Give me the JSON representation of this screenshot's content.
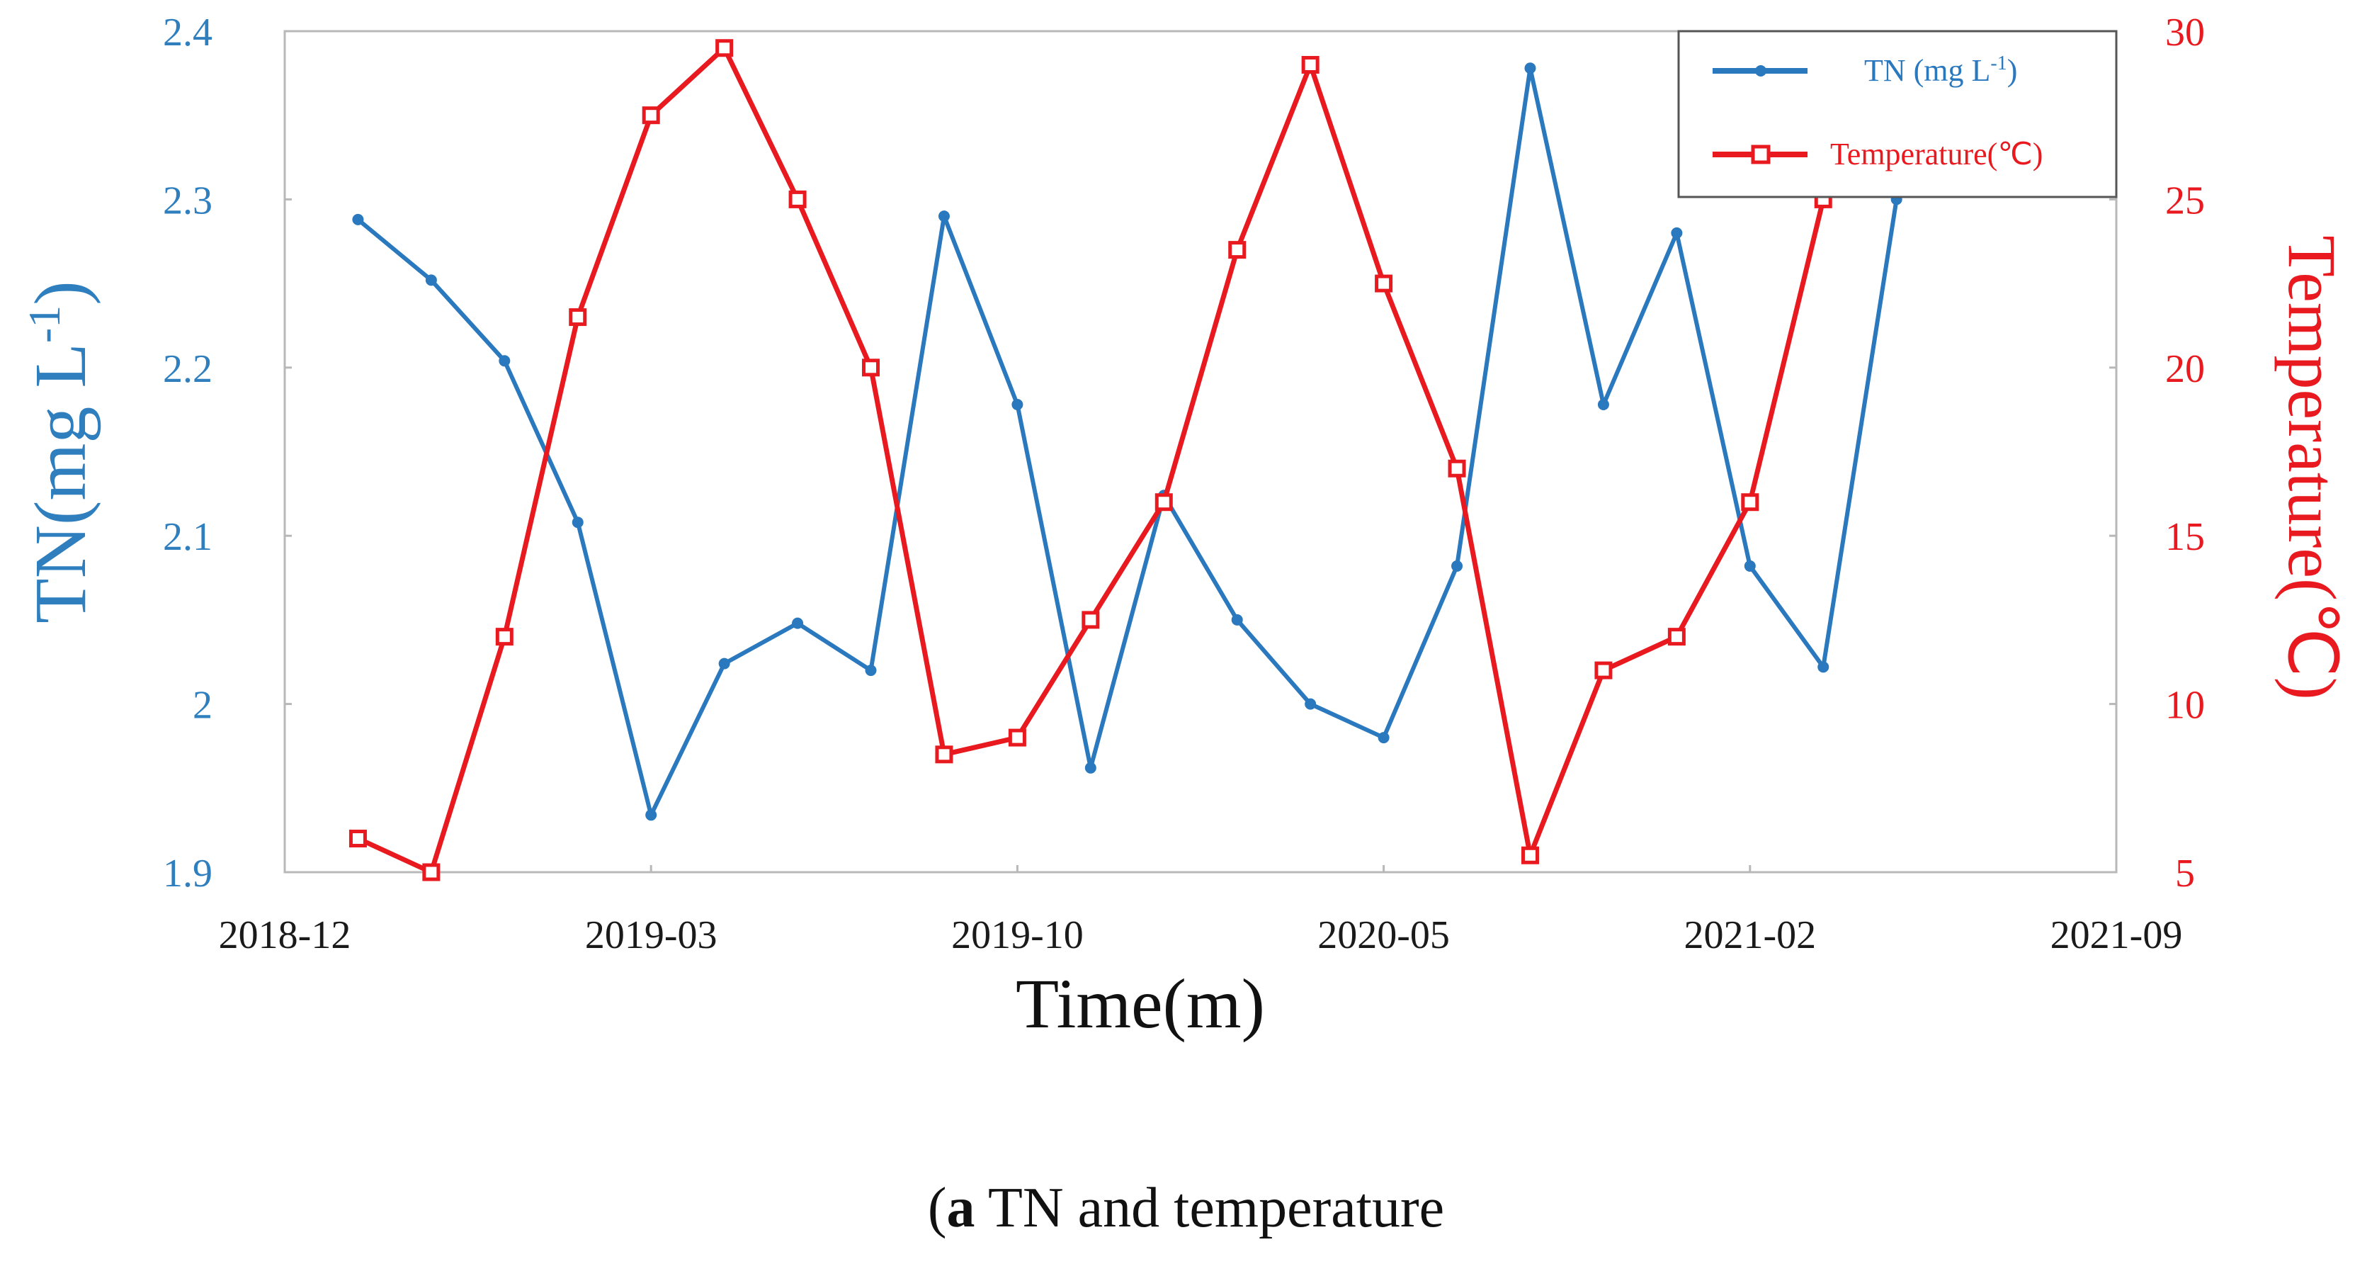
{
  "chart_data": {
    "type": "line",
    "caption": {
      "letter": "a",
      "text": " TN and temperature"
    },
    "xlabel": "Time(m)",
    "x_tick_labels": [
      "2018-12",
      "2019-03",
      "2019-10",
      "2020-05",
      "2021-02",
      "2021-09"
    ],
    "x_range": [
      0,
      25
    ],
    "x": [
      1,
      2,
      3,
      4,
      5,
      6,
      7,
      8,
      9,
      10,
      11,
      12,
      13,
      14,
      15,
      16,
      17,
      18,
      19,
      20,
      21,
      22,
      23
    ],
    "left_axis": {
      "label": "TN(mg L",
      "label_sup": "-1",
      "label_close": ")",
      "ylim": [
        1.9,
        2.4
      ],
      "ticks": [
        1.9,
        2.0,
        2.1,
        2.2,
        2.3,
        2.4
      ],
      "tick_labels": [
        "1.9",
        "2",
        "2.1",
        "2.2",
        "2.3",
        "2.4"
      ],
      "color": "#2f7fbf"
    },
    "right_axis": {
      "label": "Temperature(℃)",
      "ylim": [
        5,
        30
      ],
      "ticks": [
        5,
        10,
        15,
        20,
        25,
        30
      ],
      "tick_labels": [
        "5",
        "10",
        "15",
        "20",
        "25",
        "30"
      ],
      "color": "#e8191f"
    },
    "series": [
      {
        "name": "TN (mg L",
        "name_sup": "-1",
        "name_close": ")",
        "axis": "left",
        "marker": "circle",
        "color": "#2a78bd",
        "values": [
          2.288,
          2.252,
          2.204,
          2.108,
          1.934,
          2.024,
          2.048,
          2.02,
          2.29,
          2.178,
          1.962,
          2.124,
          2.05,
          2.0,
          1.98,
          2.082,
          2.378,
          2.178,
          2.28,
          2.082,
          2.022,
          2.3,
          null
        ]
      },
      {
        "name": "Temperature(℃)",
        "axis": "right",
        "marker": "square",
        "color": "#e8191f",
        "values": [
          6.0,
          5.0,
          12.0,
          21.5,
          27.5,
          29.5,
          25.0,
          20.0,
          8.5,
          9.0,
          12.5,
          16.0,
          23.5,
          29.0,
          22.5,
          17.0,
          5.5,
          11.0,
          12.0,
          16.0,
          25.0,
          null,
          null
        ]
      }
    ],
    "legend": "top-right"
  }
}
